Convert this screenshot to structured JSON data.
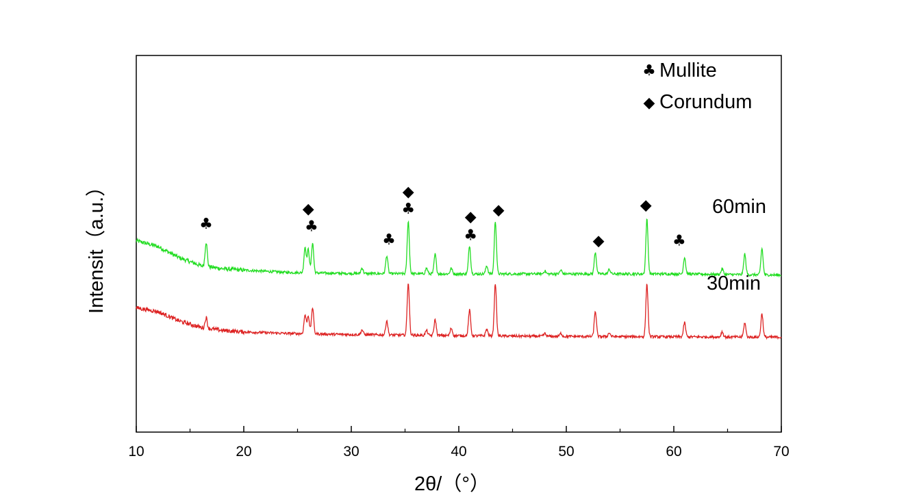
{
  "chart_data": {
    "type": "line",
    "title": "",
    "xlabel": "2θ/（°）",
    "ylabel": "Intensit（a.u.）",
    "xlim": [
      10,
      70
    ],
    "ylim": [
      0,
      100
    ],
    "x_ticks": [
      10,
      20,
      30,
      40,
      50,
      60,
      70
    ],
    "y_ticks_labeled": false,
    "grid": false,
    "legend": {
      "placement": "top-right",
      "entries": [
        {
          "symbol": "♣",
          "name": "Mullite"
        },
        {
          "symbol": "◆",
          "name": "Corundum"
        }
      ]
    },
    "series": [
      {
        "name": "60min",
        "color": "#22dd22",
        "baseline": [
          [
            10,
            50.8
          ],
          [
            12,
            49.3
          ],
          [
            14,
            46.3
          ],
          [
            16,
            44.2
          ],
          [
            18,
            43.4
          ],
          [
            20,
            43.0
          ],
          [
            24,
            42.4
          ],
          [
            30,
            42.1
          ],
          [
            40,
            42.0
          ],
          [
            50,
            42.0
          ],
          [
            60,
            42.0
          ],
          [
            70,
            41.7
          ]
        ],
        "peaks": [
          {
            "x": 16.5,
            "height": 6.5
          },
          {
            "x": 25.7,
            "height": 6.8
          },
          {
            "x": 26.0,
            "height": 6.2
          },
          {
            "x": 26.4,
            "height": 8.0
          },
          {
            "x": 31.0,
            "height": 1.5
          },
          {
            "x": 33.3,
            "height": 4.8
          },
          {
            "x": 35.3,
            "height": 14.0
          },
          {
            "x": 37.0,
            "height": 1.5
          },
          {
            "x": 37.8,
            "height": 5.2
          },
          {
            "x": 39.3,
            "height": 1.5
          },
          {
            "x": 41.0,
            "height": 7.5
          },
          {
            "x": 42.6,
            "height": 2.2
          },
          {
            "x": 43.4,
            "height": 14.0
          },
          {
            "x": 48.0,
            "height": 0.8
          },
          {
            "x": 49.5,
            "height": 1.0
          },
          {
            "x": 52.7,
            "height": 5.8
          },
          {
            "x": 54.0,
            "height": 1.2
          },
          {
            "x": 57.5,
            "height": 14.5
          },
          {
            "x": 61.0,
            "height": 4.5
          },
          {
            "x": 64.5,
            "height": 1.5
          },
          {
            "x": 66.6,
            "height": 5.5
          },
          {
            "x": 68.2,
            "height": 7.0
          }
        ]
      },
      {
        "name": "30min",
        "color": "#dd2222",
        "baseline": [
          [
            10,
            33.0
          ],
          [
            12,
            32.0
          ],
          [
            14,
            29.5
          ],
          [
            16,
            27.8
          ],
          [
            18,
            27.0
          ],
          [
            20,
            26.6
          ],
          [
            24,
            26.2
          ],
          [
            30,
            25.9
          ],
          [
            40,
            25.6
          ],
          [
            50,
            25.4
          ],
          [
            60,
            25.3
          ],
          [
            70,
            25.2
          ]
        ],
        "peaks": [
          {
            "x": 16.5,
            "height": 2.8
          },
          {
            "x": 25.7,
            "height": 5.0
          },
          {
            "x": 26.0,
            "height": 4.8
          },
          {
            "x": 26.4,
            "height": 7.0
          },
          {
            "x": 31.0,
            "height": 1.3
          },
          {
            "x": 33.3,
            "height": 3.8
          },
          {
            "x": 35.3,
            "height": 14.0
          },
          {
            "x": 37.0,
            "height": 1.3
          },
          {
            "x": 37.8,
            "height": 4.2
          },
          {
            "x": 39.3,
            "height": 2.0
          },
          {
            "x": 41.0,
            "height": 6.8
          },
          {
            "x": 42.6,
            "height": 1.8
          },
          {
            "x": 43.4,
            "height": 14.0
          },
          {
            "x": 48.0,
            "height": 0.7
          },
          {
            "x": 49.5,
            "height": 0.8
          },
          {
            "x": 52.7,
            "height": 6.8
          },
          {
            "x": 54.0,
            "height": 1.0
          },
          {
            "x": 57.5,
            "height": 14.0
          },
          {
            "x": 61.0,
            "height": 3.8
          },
          {
            "x": 64.5,
            "height": 1.4
          },
          {
            "x": 66.6,
            "height": 3.8
          },
          {
            "x": 68.2,
            "height": 6.2
          }
        ]
      }
    ],
    "annotations": [
      {
        "symbol": "♣",
        "x": 16.5,
        "y": 55.5
      },
      {
        "symbol": "◆",
        "x": 26.0,
        "y": 59.5
      },
      {
        "symbol": "♣",
        "x": 26.3,
        "y": 54.8
      },
      {
        "symbol": "♣",
        "x": 33.5,
        "y": 51.3
      },
      {
        "symbol": "◆",
        "x": 35.3,
        "y": 64.0
      },
      {
        "symbol": "♣",
        "x": 35.3,
        "y": 59.5
      },
      {
        "symbol": "◆",
        "x": 41.1,
        "y": 57.4
      },
      {
        "symbol": "♣",
        "x": 41.1,
        "y": 52.5
      },
      {
        "symbol": "◆",
        "x": 43.7,
        "y": 59.2
      },
      {
        "symbol": "◆",
        "x": 53.0,
        "y": 51.0
      },
      {
        "symbol": "◆",
        "x": 57.4,
        "y": 60.5
      },
      {
        "symbol": "♣",
        "x": 60.5,
        "y": 51.0
      }
    ]
  }
}
